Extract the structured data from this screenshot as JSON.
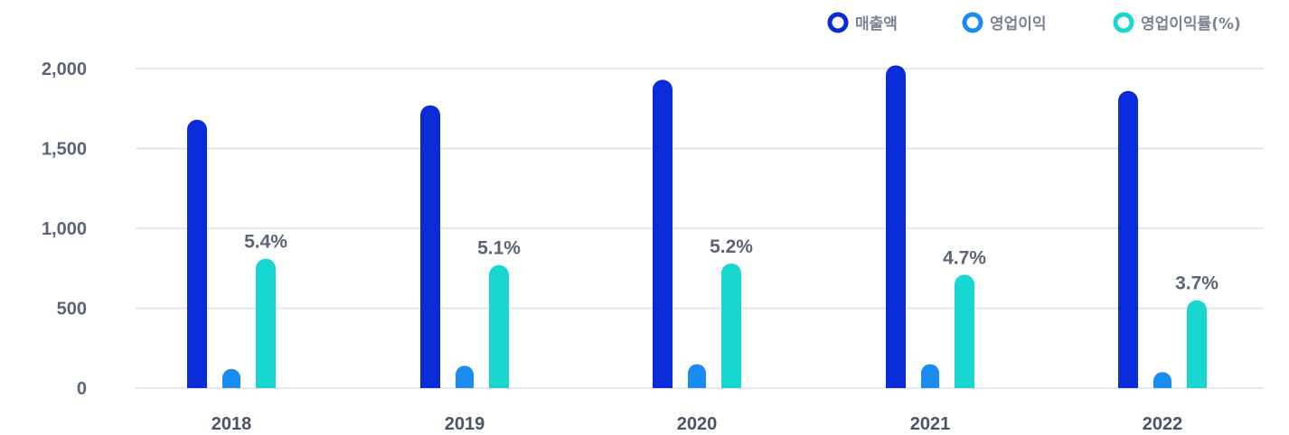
{
  "chart_data": {
    "type": "bar",
    "categories": [
      "2018",
      "2019",
      "2020",
      "2021",
      "2022"
    ],
    "ylim": [
      0,
      2000
    ],
    "yticks": [
      "0",
      "500",
      "1,000",
      "1,500",
      "2,000"
    ],
    "grid": true,
    "legend_position": "top-right",
    "series": [
      {
        "name": "매출액",
        "values": [
          1680,
          1770,
          1930,
          2020,
          1860
        ],
        "color": "#0a2bd8"
      },
      {
        "name": "영업이익",
        "values": [
          120,
          140,
          150,
          150,
          100
        ],
        "color": "#1a8bf0"
      },
      {
        "name": "영업이익률(%)",
        "values": [
          810,
          770,
          780,
          710,
          550
        ],
        "color": "#17d7d0",
        "labels": [
          "5.4%",
          "5.1%",
          "5.2%",
          "4.7%",
          "3.7%"
        ]
      }
    ]
  }
}
